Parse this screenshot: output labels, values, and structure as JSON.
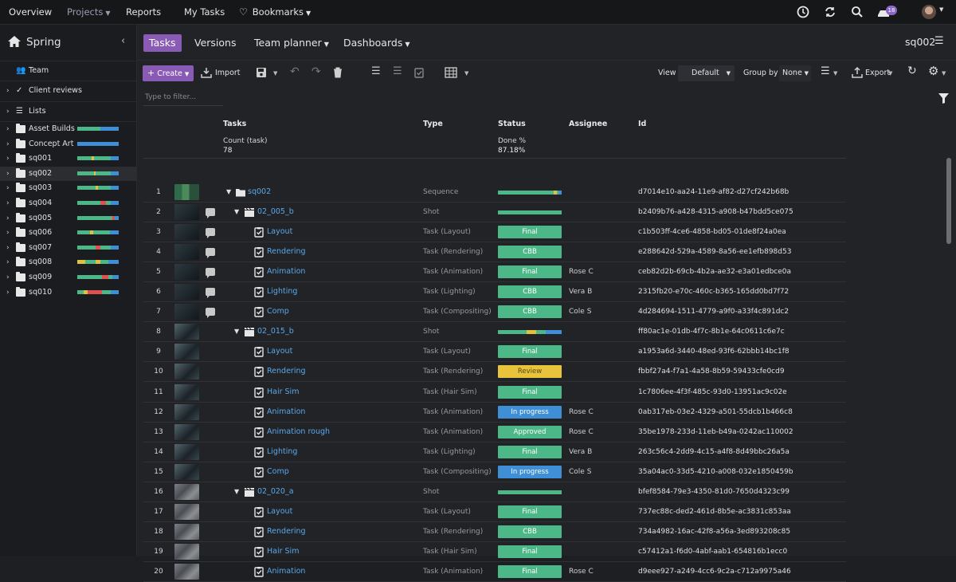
{
  "topnav": {
    "overview": "Overview",
    "projects": "Projects",
    "reports": "Reports",
    "my_tasks": "My Tasks",
    "bookmarks": "Bookmarks",
    "notification_count": "18"
  },
  "sidebar": {
    "project": "Spring",
    "team": "Team",
    "client_reviews": "Client reviews",
    "lists": "Lists",
    "folders": [
      {
        "label": "Asset Builds",
        "bar": [
          [
            "#4db887",
            0.55
          ],
          [
            "#3f8fd6",
            0.45
          ]
        ]
      },
      {
        "label": "Concept Art",
        "bar": [
          [
            "#3f8fd6",
            1.0
          ]
        ]
      },
      {
        "label": "sq001",
        "bar": [
          [
            "#4db887",
            0.35
          ],
          [
            "#e0c040",
            0.05
          ],
          [
            "#4db887",
            0.4
          ],
          [
            "#3f8fd6",
            0.2
          ]
        ]
      },
      {
        "label": "sq002",
        "bar": [
          [
            "#4db887",
            0.4
          ],
          [
            "#e0c040",
            0.05
          ],
          [
            "#4db887",
            0.35
          ],
          [
            "#3f8fd6",
            0.2
          ]
        ]
      },
      {
        "label": "sq003",
        "bar": [
          [
            "#4db887",
            0.45
          ],
          [
            "#e0c040",
            0.05
          ],
          [
            "#4db887",
            0.3
          ],
          [
            "#3f8fd6",
            0.2
          ]
        ]
      },
      {
        "label": "sq004",
        "bar": [
          [
            "#4db887",
            0.55
          ],
          [
            "#e05050",
            0.15
          ],
          [
            "#4db887",
            0.1
          ],
          [
            "#3f8fd6",
            0.2
          ]
        ]
      },
      {
        "label": "sq005",
        "bar": [
          [
            "#4db887",
            0.85
          ],
          [
            "#e05050",
            0.05
          ],
          [
            "#3f8fd6",
            0.1
          ]
        ]
      },
      {
        "label": "sq006",
        "bar": [
          [
            "#4db887",
            0.3
          ],
          [
            "#e0c040",
            0.08
          ],
          [
            "#4db887",
            0.4
          ],
          [
            "#3f8fd6",
            0.22
          ]
        ]
      },
      {
        "label": "sq007",
        "bar": [
          [
            "#4db887",
            0.45
          ],
          [
            "#e05050",
            0.1
          ],
          [
            "#4db887",
            0.25
          ],
          [
            "#3f8fd6",
            0.2
          ]
        ]
      },
      {
        "label": "sq008",
        "bar": [
          [
            "#e0c040",
            0.2
          ],
          [
            "#4db887",
            0.25
          ],
          [
            "#e0c040",
            0.1
          ],
          [
            "#4db887",
            0.2
          ],
          [
            "#3f8fd6",
            0.25
          ]
        ]
      },
      {
        "label": "sq009",
        "bar": [
          [
            "#4db887",
            0.6
          ],
          [
            "#e05050",
            0.15
          ],
          [
            "#4db887",
            0.1
          ],
          [
            "#3f8fd6",
            0.15
          ]
        ]
      },
      {
        "label": "sq010",
        "bar": [
          [
            "#4db887",
            0.15
          ],
          [
            "#e0c040",
            0.1
          ],
          [
            "#e05050",
            0.35
          ],
          [
            "#4db887",
            0.2
          ],
          [
            "#3f8fd6",
            0.2
          ]
        ]
      }
    ]
  },
  "tabs": {
    "tasks": "Tasks",
    "versions": "Versions",
    "team_planner": "Team planner",
    "dashboards": "Dashboards",
    "current": "sq002"
  },
  "toolbar": {
    "create": "Create",
    "import": "Import",
    "view_label": "View",
    "view_value": "Default",
    "group_label": "Group by",
    "group_value": "None",
    "export": "Export",
    "filter_placeholder": "Type to filter..."
  },
  "grid": {
    "columns": {
      "tasks": "Tasks",
      "type": "Type",
      "status": "Status",
      "assignee": "Assignee",
      "id": "Id"
    },
    "summary": {
      "count_label": "Count (task)",
      "count_value": "78",
      "done_label": "Done %",
      "done_value": "87.18%"
    },
    "rows": [
      {
        "n": "1",
        "thumb": "t1",
        "comment": false,
        "level": 0,
        "kind": "folder",
        "name": "sq002",
        "type": "Sequence",
        "status": null,
        "bar": [
          [
            "#4db887",
            0.88
          ],
          [
            "#e0c040",
            0.04
          ],
          [
            "#4db887",
            0.03
          ],
          [
            "#3f8fd6",
            0.05
          ]
        ],
        "assignee": "",
        "id": "d7014e10-aa24-11e9-af82-d27cf242b68b"
      },
      {
        "n": "2",
        "thumb": "t2",
        "comment": true,
        "level": 1,
        "kind": "shot",
        "name": "02_005_b",
        "type": "Shot",
        "status": null,
        "bar": [
          [
            "#4db887",
            1.0
          ]
        ],
        "assignee": "",
        "id": "b2409b76-a428-4315-a908-b47bdd5ce075"
      },
      {
        "n": "3",
        "thumb": "t2",
        "comment": true,
        "level": 2,
        "kind": "task",
        "name": "Layout",
        "type": "Task (Layout)",
        "status": "Final",
        "color": "#4db887",
        "assignee": "",
        "id": "c1b503ff-4ce6-4858-bd05-01de8f24a0ea"
      },
      {
        "n": "4",
        "thumb": "t2",
        "comment": true,
        "level": 2,
        "kind": "task",
        "name": "Rendering",
        "type": "Task (Rendering)",
        "status": "CBB",
        "color": "#4db887",
        "assignee": "",
        "id": "e288642d-529a-4589-8a56-ee1efb898d53"
      },
      {
        "n": "5",
        "thumb": "t2",
        "comment": true,
        "level": 2,
        "kind": "task",
        "name": "Animation",
        "type": "Task (Animation)",
        "status": "Final",
        "color": "#4db887",
        "assignee": "Rose C",
        "id": "ceb82d2b-69cb-4b2a-ae32-e3a01edbce0a"
      },
      {
        "n": "6",
        "thumb": "t2",
        "comment": true,
        "level": 2,
        "kind": "task",
        "name": "Lighting",
        "type": "Task (Lighting)",
        "status": "CBB",
        "color": "#4db887",
        "assignee": "Vera B",
        "id": "2315fb20-e70c-460c-b365-165dd0bd7f72"
      },
      {
        "n": "7",
        "thumb": "t2",
        "comment": true,
        "level": 2,
        "kind": "task",
        "name": "Comp",
        "type": "Task (Compositing)",
        "status": "CBB",
        "color": "#4db887",
        "assignee": "Cole S",
        "id": "4d284694-1511-4779-a9f0-a33f4c891dc2"
      },
      {
        "n": "8",
        "thumb": "t3",
        "comment": false,
        "level": 1,
        "kind": "shot",
        "name": "02_015_b",
        "type": "Shot",
        "status": null,
        "bar": [
          [
            "#4db887",
            0.45
          ],
          [
            "#e0c040",
            0.15
          ],
          [
            "#4db887",
            0.15
          ],
          [
            "#3f8fd6",
            0.25
          ]
        ],
        "assignee": "",
        "id": "ff80ac1e-01db-4f7c-8b1e-64c0611c6e7c"
      },
      {
        "n": "9",
        "thumb": "t3",
        "comment": false,
        "level": 2,
        "kind": "task",
        "name": "Layout",
        "type": "Task (Layout)",
        "status": "Final",
        "color": "#4db887",
        "assignee": "",
        "id": "a1953a6d-3440-48ed-93f6-62bbb14bc1f8"
      },
      {
        "n": "10",
        "thumb": "t3",
        "comment": false,
        "level": 2,
        "kind": "task",
        "name": "Rendering",
        "type": "Task (Rendering)",
        "status": "Review",
        "color": "#e8c33c",
        "assignee": "",
        "id": "fbbf27a4-f7a1-4a58-8b59-59433cfe0cd9"
      },
      {
        "n": "11",
        "thumb": "t3",
        "comment": false,
        "level": 2,
        "kind": "task",
        "name": "Hair Sim",
        "type": "Task (Hair Sim)",
        "status": "Final",
        "color": "#4db887",
        "assignee": "",
        "id": "1c7806ee-4f3f-485c-93d0-13951ac9c02e"
      },
      {
        "n": "12",
        "thumb": "t3",
        "comment": false,
        "level": 2,
        "kind": "task",
        "name": "Animation",
        "type": "Task (Animation)",
        "status": "In progress",
        "color": "#3f8fd6",
        "assignee": "Rose C",
        "id": "0ab317eb-03e2-4329-a501-55dcb1b466c8"
      },
      {
        "n": "13",
        "thumb": "t3",
        "comment": false,
        "level": 2,
        "kind": "task",
        "name": "Animation rough",
        "type": "Task (Animation)",
        "status": "Approved",
        "color": "#4db887",
        "assignee": "Rose C",
        "id": "35be1978-233d-11eb-b49a-0242ac110002"
      },
      {
        "n": "14",
        "thumb": "t3",
        "comment": false,
        "level": 2,
        "kind": "task",
        "name": "Lighting",
        "type": "Task (Lighting)",
        "status": "Final",
        "color": "#4db887",
        "assignee": "Vera B",
        "id": "263c56c4-2dd9-4c15-a4f8-8d49bbc26a5a"
      },
      {
        "n": "15",
        "thumb": "t3",
        "comment": false,
        "level": 2,
        "kind": "task",
        "name": "Comp",
        "type": "Task (Compositing)",
        "status": "In progress",
        "color": "#3f8fd6",
        "assignee": "Cole S",
        "id": "35a04ac0-33d5-4210-a008-032e1850459b"
      },
      {
        "n": "16",
        "thumb": "t4",
        "comment": false,
        "level": 1,
        "kind": "shot",
        "name": "02_020_a",
        "type": "Shot",
        "status": null,
        "bar": [
          [
            "#4db887",
            1.0
          ]
        ],
        "assignee": "",
        "id": "bfef8584-79e3-4350-81d0-7650d4323c99"
      },
      {
        "n": "17",
        "thumb": "t4",
        "comment": false,
        "level": 2,
        "kind": "task",
        "name": "Layout",
        "type": "Task (Layout)",
        "status": "Final",
        "color": "#4db887",
        "assignee": "",
        "id": "737ec88c-ded2-461d-8b5e-ac3831c853aa"
      },
      {
        "n": "18",
        "thumb": "t4",
        "comment": false,
        "level": 2,
        "kind": "task",
        "name": "Rendering",
        "type": "Task (Rendering)",
        "status": "CBB",
        "color": "#4db887",
        "assignee": "",
        "id": "734a4982-16ac-42f8-a56a-3ed893208c85"
      },
      {
        "n": "19",
        "thumb": "t4",
        "comment": false,
        "level": 2,
        "kind": "task",
        "name": "Hair Sim",
        "type": "Task (Hair Sim)",
        "status": "Final",
        "color": "#4db887",
        "assignee": "",
        "id": "c57412a1-f6d0-4abf-aab1-654816b1ecc0"
      },
      {
        "n": "20",
        "thumb": "t4",
        "comment": false,
        "level": 2,
        "kind": "task",
        "name": "Animation",
        "type": "Task (Animation)",
        "status": "Final",
        "color": "#4db887",
        "assignee": "Rose C",
        "id": "d9eee927-a249-4cc6-9c2a-c712a9975a46"
      }
    ]
  }
}
